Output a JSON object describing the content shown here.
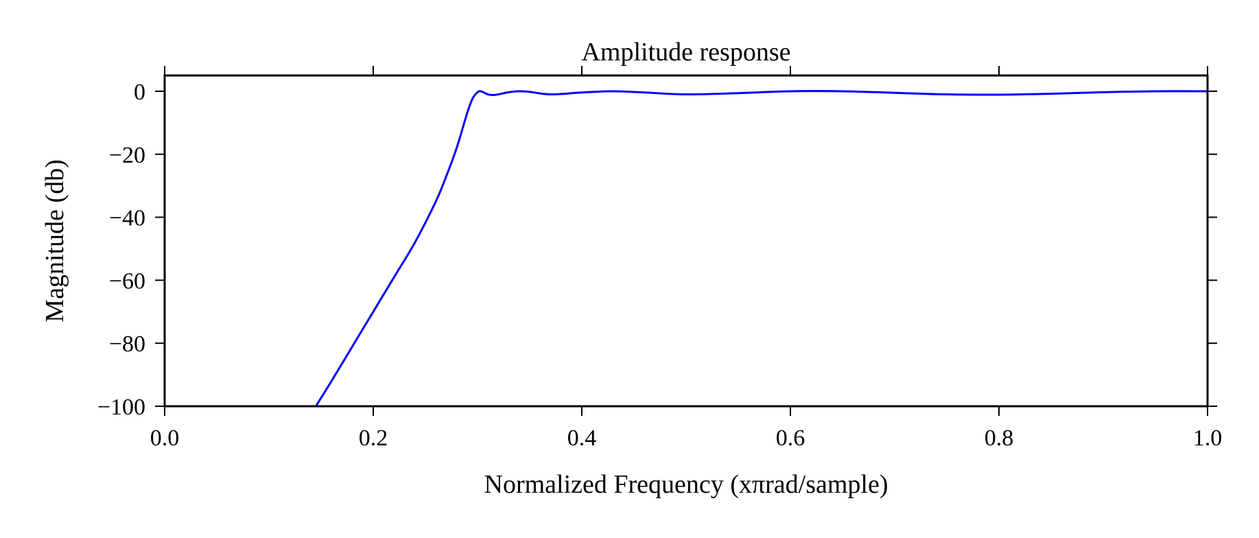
{
  "chart_data": {
    "type": "line",
    "title": "Amplitude response",
    "xlabel": "Normalized Frequency (xπrad/sample)",
    "ylabel": "Magnitude (db)",
    "xlim": [
      0.0,
      1.0
    ],
    "ylim": [
      -100,
      5
    ],
    "xticks": [
      0.0,
      0.2,
      0.4,
      0.6,
      0.8,
      1.0
    ],
    "xtick_labels": [
      "0.0",
      "0.2",
      "0.4",
      "0.6",
      "0.8",
      "1.0"
    ],
    "yticks": [
      0,
      -20,
      -40,
      -60,
      -80,
      -100
    ],
    "ytick_labels": [
      "0",
      "−20",
      "−40",
      "−60",
      "−80",
      "−100"
    ],
    "grid": false,
    "series": [
      {
        "color": "#0000ff",
        "x": [
          0.145,
          0.16,
          0.18,
          0.2,
          0.22,
          0.24,
          0.26,
          0.27,
          0.28,
          0.29,
          0.295,
          0.3,
          0.303,
          0.306,
          0.31,
          0.315,
          0.32,
          0.33,
          0.34,
          0.35,
          0.37,
          0.4,
          0.43,
          0.46,
          0.5,
          0.55,
          0.6,
          0.65,
          0.7,
          0.75,
          0.8,
          0.85,
          0.9,
          0.95,
          1.0
        ],
        "y": [
          -100,
          -92,
          -81,
          -70,
          -59,
          -48,
          -35,
          -27,
          -18,
          -7,
          -2.5,
          -0.3,
          0.0,
          -0.4,
          -1.0,
          -1.2,
          -1.0,
          -0.3,
          0.0,
          -0.2,
          -1.0,
          -0.4,
          0.0,
          -0.4,
          -1.0,
          -0.6,
          0.0,
          0.0,
          -0.5,
          -1.0,
          -1.1,
          -0.8,
          -0.3,
          0.0,
          0.0
        ]
      }
    ]
  }
}
